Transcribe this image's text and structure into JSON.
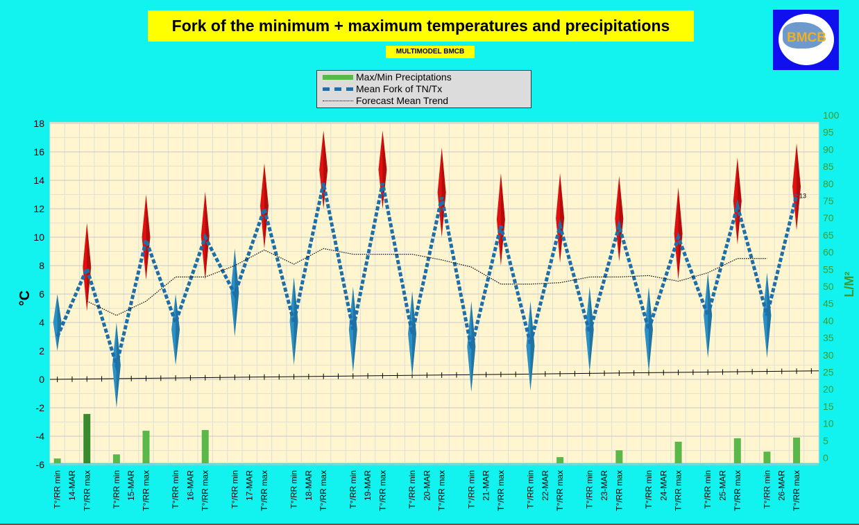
{
  "title": "Fork of the minimum + maximum temperatures and precipitations",
  "subtitle": "MULTIMODEL BMCB",
  "logo_text": "BMCB",
  "legend": [
    "Max/Min Preciptations",
    "Mean Fork of TN/Tx",
    "Forecast Mean Trend"
  ],
  "colors": {
    "bg": "#12f2ee",
    "plot": "#fff6d0",
    "precip": "#5ab84a",
    "precip_dark": "#3a8a30",
    "fork": "#1e6fa8",
    "red": "#e01010",
    "blue": "#2a90c8"
  },
  "chart_data": {
    "type": "line",
    "title": "Fork of the minimum + maximum temperatures and precipitations",
    "ylabel": "°C",
    "y2label": "L/M²",
    "ylim": [
      -6,
      18
    ],
    "y2lim": [
      0,
      100
    ],
    "yticks": [
      "18",
      "16",
      "14",
      "12",
      "10",
      "8",
      "6",
      "4",
      "2",
      "0",
      "-2",
      "-4",
      "-6"
    ],
    "y2ticks": [
      "100",
      "95",
      "90",
      "85",
      "80",
      "75",
      "70",
      "65",
      "60",
      "55",
      "50",
      "45",
      "40",
      "35",
      "30",
      "25",
      "20",
      "15",
      "10",
      "5",
      "0"
    ],
    "days": [
      "14-MAR",
      "15-MAR",
      "16-MAR",
      "17-MAR",
      "18-MAR",
      "19-MAR",
      "20-MAR",
      "21-MAR",
      "22-MAR",
      "23-MAR",
      "24-MAR",
      "25-MAR",
      "26-MAR"
    ],
    "min_label": "T°/RR min",
    "max_label": "T°/RR max",
    "tn": [
      3,
      1,
      4,
      6,
      4,
      3.5,
      3.2,
      2.2,
      2.5,
      3.3,
      3.5,
      4.5,
      4.5
    ],
    "tx": [
      7.8,
      9.8,
      10,
      12,
      13.8,
      13.8,
      12.8,
      10.8,
      10.8,
      10.8,
      10,
      12.2,
      13
    ],
    "tn_range": [
      [
        2,
        6
      ],
      [
        -2,
        4
      ],
      [
        1,
        6
      ],
      [
        3,
        9.2
      ],
      [
        1,
        7.2
      ],
      [
        0.5,
        6.5
      ],
      [
        0.2,
        6.2
      ],
      [
        -0.9,
        5.5
      ],
      [
        -0.8,
        5.5
      ],
      [
        0.5,
        6.5
      ],
      [
        0.5,
        6.5
      ],
      [
        1.5,
        7.5
      ],
      [
        1.5,
        7.5
      ]
    ],
    "tx_range": [
      [
        4.8,
        11
      ],
      [
        7,
        13
      ],
      [
        7,
        13.2
      ],
      [
        9.2,
        15.2
      ],
      [
        12,
        17.5
      ],
      [
        12,
        17.5
      ],
      [
        10,
        16.3
      ],
      [
        8,
        14.5
      ],
      [
        8.2,
        14.5
      ],
      [
        8.3,
        14.3
      ],
      [
        7,
        13.5
      ],
      [
        9.5,
        15.6
      ],
      [
        10.5,
        16.6
      ]
    ],
    "trend": [
      null,
      5.5,
      4.5,
      5.5,
      7.2,
      7.2,
      8,
      9.1,
      8.1,
      9.2,
      8.8,
      8.8,
      8.8,
      8.4,
      7.9,
      6.7,
      6.7,
      6.8,
      7.2,
      7.2,
      7.3,
      6.9,
      7.5,
      8.5,
      8.5,
      null
    ],
    "precip_min": [
      1.4,
      2.6,
      0,
      0,
      0,
      0,
      0,
      0,
      0,
      0,
      0,
      0,
      3.4
    ],
    "precip_max": [
      14.4,
      9.5,
      9.7,
      0,
      0,
      0,
      0,
      0,
      1.8,
      3.8,
      6.3,
      7.3,
      7.5
    ],
    "last_label": "13",
    "baseline": [
      0,
      0.6
    ]
  }
}
